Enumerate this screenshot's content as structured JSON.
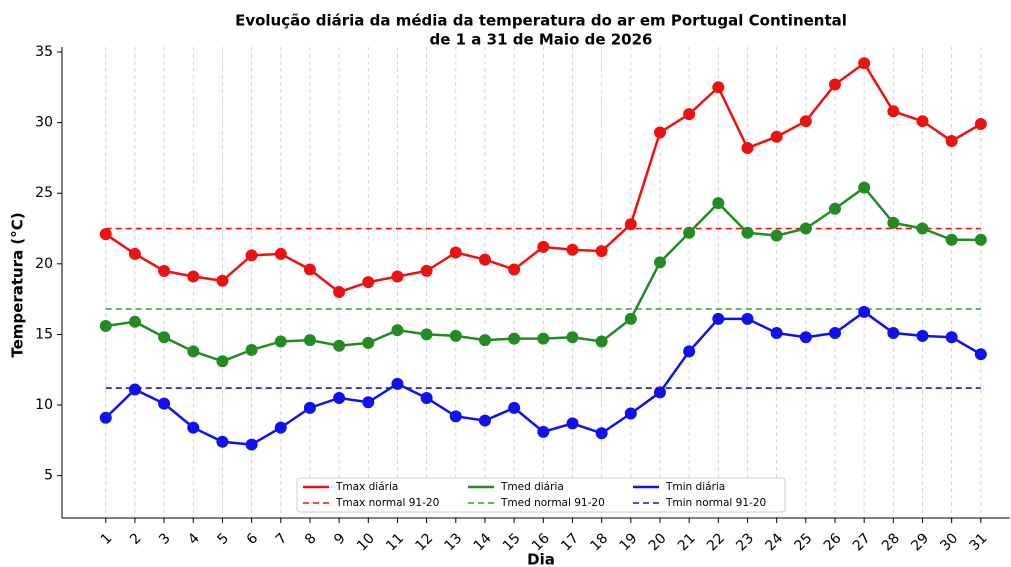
{
  "chart_data": {
    "type": "line",
    "title": "Evolução diária da média da temperatura do ar em Portugal Continental",
    "subtitle": "de 1 a 31 de Maio de 2026",
    "xlabel": "Dia",
    "ylabel": "Temperatura (°C)",
    "x": [
      1,
      2,
      3,
      4,
      5,
      6,
      7,
      8,
      9,
      10,
      11,
      12,
      13,
      14,
      15,
      16,
      17,
      18,
      19,
      20,
      21,
      22,
      23,
      24,
      25,
      26,
      27,
      28,
      29,
      30,
      31
    ],
    "xlim": [
      -0.5,
      32
    ],
    "ylim": [
      2,
      35
    ],
    "yticks": [
      5,
      10,
      15,
      20,
      25,
      30,
      35
    ],
    "grid": "x",
    "legend": "lower center",
    "series": [
      {
        "name": "Tmax diária",
        "color": "#ee1111",
        "values": [
          22.1,
          20.7,
          19.5,
          19.1,
          18.8,
          20.6,
          20.7,
          19.6,
          18.0,
          18.7,
          19.1,
          19.5,
          20.8,
          20.3,
          19.6,
          21.2,
          21.0,
          20.9,
          22.8,
          29.3,
          30.6,
          32.5,
          28.2,
          29.0,
          30.1,
          32.7,
          34.2,
          30.8,
          30.1,
          28.7,
          29.9
        ]
      },
      {
        "name": "Tmed diária",
        "color": "#228b22",
        "values": [
          15.6,
          15.9,
          14.8,
          13.8,
          13.1,
          13.9,
          14.5,
          14.6,
          14.2,
          14.4,
          15.3,
          15.0,
          14.9,
          14.6,
          14.7,
          14.7,
          14.8,
          14.5,
          16.1,
          20.1,
          22.2,
          24.3,
          22.2,
          22.0,
          22.5,
          23.9,
          25.4,
          22.9,
          22.5,
          21.7,
          21.7
        ]
      },
      {
        "name": "Tmin diária",
        "color": "#1111ee",
        "values": [
          9.1,
          11.1,
          10.1,
          8.4,
          7.4,
          7.2,
          8.4,
          9.8,
          10.5,
          10.2,
          11.5,
          10.5,
          9.2,
          8.9,
          9.8,
          8.1,
          8.7,
          8.0,
          9.4,
          10.9,
          13.8,
          16.1,
          16.1,
          15.1,
          14.8,
          15.1,
          16.6,
          15.1,
          14.9,
          14.8,
          13.6
        ]
      }
    ],
    "normals": [
      {
        "name": "Tmax normal 91-20",
        "color": "#ee1111",
        "value": 22.5
      },
      {
        "name": "Tmed normal 91-20",
        "color": "#3a9a3a",
        "value": 16.8
      },
      {
        "name": "Tmin normal 91-20",
        "color": "#1111ee",
        "value": 11.2
      }
    ]
  }
}
